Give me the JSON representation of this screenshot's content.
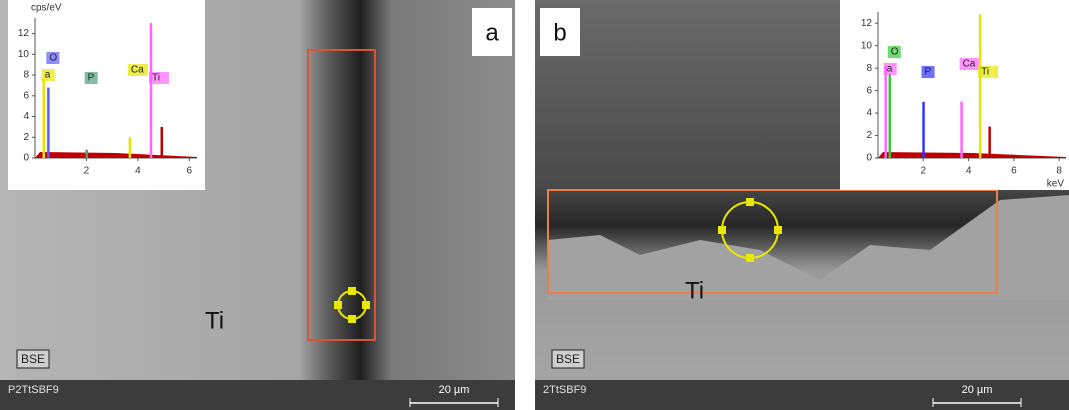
{
  "panels": [
    {
      "label": "a",
      "sample": "P2TtSBF9",
      "phase": "Ti",
      "detector": "BSE",
      "scale_bar": "20 µm",
      "inset": {
        "y_unit": "cps/eV",
        "xlim": [
          0,
          6.3
        ],
        "ylim": [
          0,
          13.5
        ],
        "xticks": [
          2,
          4,
          6
        ],
        "yticks": [
          0,
          2,
          4,
          6,
          8,
          10,
          12
        ],
        "peaks": [
          {
            "name": "O",
            "energy": 0.52,
            "height": 6.8,
            "color": "#5b5bff"
          },
          {
            "name": "a",
            "energy": 0.34,
            "height": 7.6,
            "color": "#e6e600"
          },
          {
            "name": "P",
            "energy": 2.01,
            "height": 0.8,
            "color": "#4f9f7f"
          },
          {
            "name": "Ca",
            "energy": 3.69,
            "height": 2.0,
            "color": "#e6e600"
          },
          {
            "name": "Ti",
            "energy": 4.51,
            "height": 13.0,
            "color": "#ff66ff"
          },
          {
            "energy": 4.93,
            "height": 3.0,
            "color": "#c00000"
          }
        ]
      }
    },
    {
      "label": "b",
      "sample": "2TtSBF9",
      "phase": "Ti",
      "detector": "BSE",
      "scale_bar": "20 µm",
      "inset": {
        "x_unit": "keV",
        "xlim": [
          0,
          8.3
        ],
        "ylim": [
          0,
          13
        ],
        "xticks": [
          2,
          4,
          6,
          8
        ],
        "yticks": [
          0,
          2,
          4,
          6,
          8,
          10,
          12
        ],
        "peaks": [
          {
            "name": "O",
            "energy": 0.52,
            "height": 7.5,
            "color": "#33cc33"
          },
          {
            "name": "a",
            "energy": 0.34,
            "height": 8.2,
            "color": "#ff66ff"
          },
          {
            "name": "P",
            "energy": 2.01,
            "height": 5.0,
            "color": "#3333ff"
          },
          {
            "name": "Ca",
            "energy": 3.69,
            "height": 5.0,
            "color": "#ff66ff"
          },
          {
            "name": "Ti",
            "energy": 4.51,
            "height": 12.8,
            "color": "#e6e600"
          },
          {
            "energy": 4.93,
            "height": 2.8,
            "color": "#c00000"
          }
        ]
      }
    }
  ]
}
